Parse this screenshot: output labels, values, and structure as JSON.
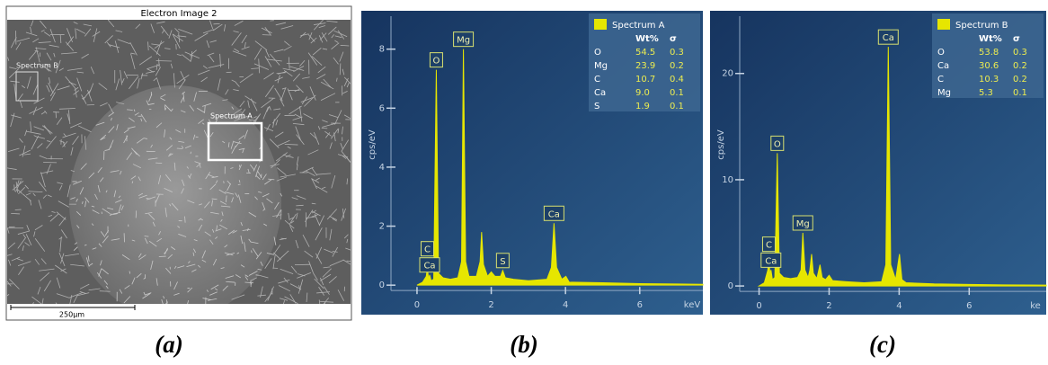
{
  "image": {
    "title": "Electron Image 2",
    "labels": [
      "Spectrum B",
      "Spectrum A"
    ],
    "scale_bar": "250µm"
  },
  "captions": [
    "(a)",
    "(b)",
    "(c)"
  ],
  "chart_data": [
    {
      "type": "area",
      "y_label": "cps/eV",
      "x_label": "keV",
      "color": "#e6e600",
      "xlim": [
        -1.5,
        7.7
      ],
      "ylim": [
        -1,
        9.3
      ],
      "xticks": [
        0,
        2,
        4,
        6
      ],
      "yticks": [
        0,
        2,
        4,
        6,
        8
      ],
      "x": [
        0,
        0.15,
        0.25,
        0.28,
        0.31,
        0.34,
        0.38,
        0.45,
        0.52,
        0.58,
        0.7,
        0.9,
        1.1,
        1.2,
        1.25,
        1.31,
        1.4,
        1.6,
        1.7,
        1.74,
        1.79,
        1.9,
        2.0,
        2.1,
        2.25,
        2.31,
        2.38,
        2.6,
        3.0,
        3.5,
        3.62,
        3.69,
        3.76,
        3.9,
        4.01,
        4.1,
        5,
        6,
        7,
        7.7
      ],
      "values": [
        0,
        0.1,
        0.3,
        0.6,
        0.2,
        0.35,
        0.15,
        0.2,
        7.3,
        0.4,
        0.25,
        0.2,
        0.25,
        0.8,
        8.0,
        0.8,
        0.3,
        0.3,
        0.8,
        1.8,
        0.7,
        0.3,
        0.45,
        0.3,
        0.3,
        0.5,
        0.25,
        0.2,
        0.15,
        0.2,
        0.6,
        2.1,
        0.6,
        0.2,
        0.3,
        0.1,
        0.08,
        0.05,
        0.04,
        0.03
      ],
      "annotations": [
        {
          "text": "Ca",
          "x": 0.34
        },
        {
          "text": "C",
          "x": 0.28
        },
        {
          "text": "O",
          "x": 0.52
        },
        {
          "text": "Mg",
          "x": 1.25
        },
        {
          "text": "S",
          "x": 2.31
        },
        {
          "text": "Ca",
          "x": 3.69
        }
      ],
      "legend": {
        "title": "Spectrum A",
        "header": [
          "Wt%",
          "σ"
        ],
        "rows": [
          [
            "O",
            "54.5",
            "0.3"
          ],
          [
            "Mg",
            "23.9",
            "0.2"
          ],
          [
            "C",
            "10.7",
            "0.4"
          ],
          [
            "Ca",
            "9.0",
            "0.1"
          ],
          [
            "S",
            "1.9",
            "0.1"
          ]
        ]
      }
    },
    {
      "type": "area",
      "y_label": "cps/eV",
      "x_label": "ke",
      "color": "#e6e600",
      "xlim": [
        -1.4,
        8.2
      ],
      "ylim": [
        -2.7,
        25.9
      ],
      "xticks": [
        0,
        2,
        4,
        6
      ],
      "yticks": [
        0,
        10,
        20
      ],
      "x": [
        0,
        0.15,
        0.25,
        0.28,
        0.31,
        0.34,
        0.38,
        0.45,
        0.52,
        0.58,
        0.7,
        0.9,
        1.1,
        1.2,
        1.25,
        1.31,
        1.4,
        1.45,
        1.5,
        1.55,
        1.65,
        1.74,
        1.8,
        1.9,
        2.0,
        2.1,
        2.5,
        3.0,
        3.5,
        3.62,
        3.69,
        3.76,
        3.9,
        4.01,
        4.08,
        4.2,
        5,
        6,
        7,
        8.2
      ],
      "values": [
        0,
        0.3,
        1.5,
        3.0,
        1.0,
        1.5,
        0.6,
        0.8,
        12.5,
        1.2,
        0.8,
        0.7,
        0.8,
        1.5,
        5.0,
        1.5,
        0.8,
        1.5,
        3.0,
        1.2,
        0.7,
        2.0,
        0.8,
        0.6,
        1.0,
        0.5,
        0.4,
        0.3,
        0.4,
        2.0,
        22.5,
        2.0,
        0.6,
        3.0,
        0.6,
        0.3,
        0.2,
        0.15,
        0.1,
        0.08
      ],
      "annotations": [
        {
          "text": "Ca",
          "x": 0.34
        },
        {
          "text": "C",
          "x": 0.28
        },
        {
          "text": "O",
          "x": 0.52
        },
        {
          "text": "Mg",
          "x": 1.25
        },
        {
          "text": "Ca",
          "x": 3.69
        }
      ],
      "legend": {
        "title": "Spectrum B",
        "header": [
          "Wt%",
          "σ"
        ],
        "rows": [
          [
            "O",
            "53.8",
            "0.3"
          ],
          [
            "Ca",
            "30.6",
            "0.2"
          ],
          [
            "C",
            "10.3",
            "0.2"
          ],
          [
            "Mg",
            "5.3",
            "0.1"
          ]
        ]
      }
    }
  ]
}
